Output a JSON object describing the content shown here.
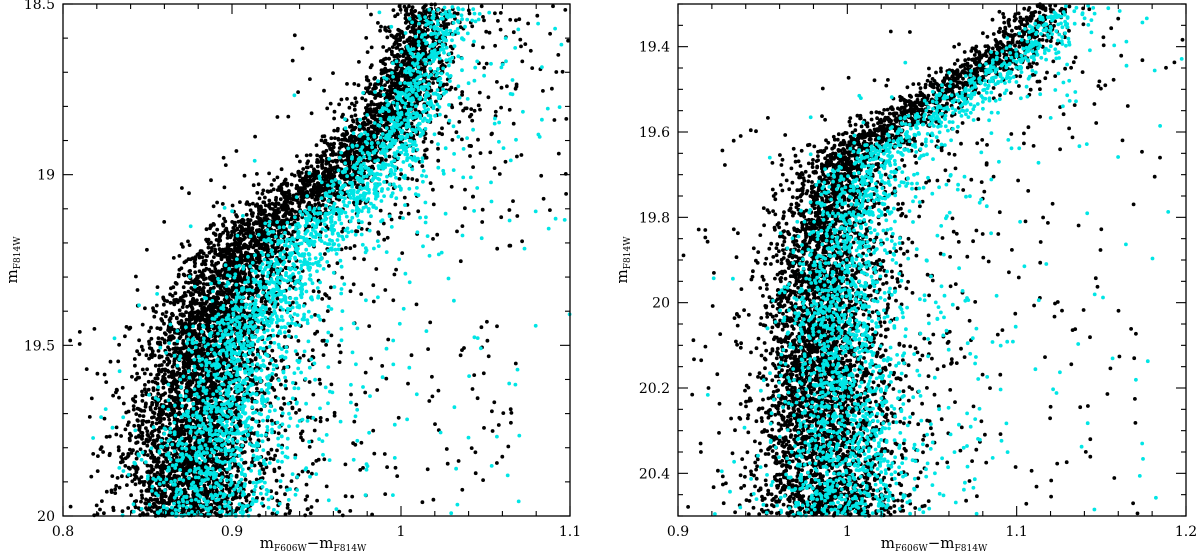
{
  "chart_data": [
    {
      "type": "scatter",
      "xlabel": "m_F606W − m_F814W",
      "xlabel_main": "m",
      "xlabel_sub1": "F606W",
      "xlabel_minus": "−m",
      "xlabel_sub2": "F814W",
      "ylabel_main": "m",
      "ylabel_sub": "F814W",
      "xlim": [
        0.8,
        1.1
      ],
      "ylim": [
        18.5,
        20.0
      ],
      "y_inverted": true,
      "x_major_ticks": [
        0.8,
        0.9,
        1.0,
        1.1
      ],
      "x_tick_labels": [
        "0.8",
        "0.9",
        "1",
        "1.1"
      ],
      "x_minor_step": 0.02,
      "y_major_ticks": [
        18.5,
        19.0,
        19.5,
        20.0
      ],
      "y_tick_labels": [
        "18.5",
        "19",
        "19.5",
        "20"
      ],
      "y_minor_step": 0.1,
      "grid": false,
      "series_colors": [
        "#000000",
        "#00e5e5"
      ],
      "series": [
        {
          "color": "#000000",
          "density_track": [
            [
              20.0,
              0.872
            ],
            [
              19.75,
              0.876
            ],
            [
              19.5,
              0.884
            ],
            [
              19.3,
              0.898
            ],
            [
              19.15,
              0.918
            ],
            [
              19.05,
              0.945
            ],
            [
              18.95,
              0.972
            ],
            [
              18.85,
              0.99
            ],
            [
              18.75,
              1.0
            ],
            [
              18.62,
              1.008
            ],
            [
              18.5,
              1.016
            ]
          ],
          "count": 6500
        },
        {
          "color": "#00e5e5",
          "density_track": [
            [
              20.0,
              0.885
            ],
            [
              19.75,
              0.892
            ],
            [
              19.5,
              0.904
            ],
            [
              19.3,
              0.925
            ],
            [
              19.15,
              0.95
            ],
            [
              19.05,
              0.975
            ],
            [
              18.95,
              0.99
            ],
            [
              18.85,
              1.0
            ],
            [
              18.75,
              1.01
            ],
            [
              18.62,
              1.018
            ],
            [
              18.5,
              1.026
            ]
          ],
          "count": 2600
        }
      ]
    },
    {
      "type": "scatter",
      "xlabel": "m_F606W − m_F814W",
      "xlabel_main": "m",
      "xlabel_sub1": "F606W",
      "xlabel_minus": "−m",
      "xlabel_sub2": "F814W",
      "ylabel_main": "m",
      "ylabel_sub": "F814W",
      "xlim": [
        0.9,
        1.2
      ],
      "ylim": [
        19.3,
        20.5
      ],
      "y_inverted": true,
      "x_major_ticks": [
        0.9,
        1.0,
        1.1,
        1.2
      ],
      "x_tick_labels": [
        "0.9",
        "1",
        "1.1",
        "1.2"
      ],
      "x_minor_step": 0.02,
      "y_major_ticks": [
        19.4,
        19.6,
        19.8,
        20.0,
        20.2,
        20.4
      ],
      "y_tick_labels": [
        "19.4",
        "19.6",
        "19.8",
        "20",
        "20.2",
        "20.4"
      ],
      "y_minor_step": 0.05,
      "grid": false,
      "series_colors": [
        "#000000",
        "#00e5e5"
      ],
      "series": [
        {
          "color": "#000000",
          "density_track": [
            [
              20.5,
              0.985
            ],
            [
              20.2,
              0.983
            ],
            [
              20.0,
              0.982
            ],
            [
              19.85,
              0.984
            ],
            [
              19.75,
              0.99
            ],
            [
              19.65,
              1.0
            ],
            [
              19.58,
              1.025
            ],
            [
              19.52,
              1.05
            ],
            [
              19.45,
              1.08
            ],
            [
              19.38,
              1.1
            ],
            [
              19.3,
              1.12
            ]
          ],
          "count": 5200
        },
        {
          "color": "#00e5e5",
          "density_track": [
            [
              20.5,
              0.998
            ],
            [
              20.2,
              0.996
            ],
            [
              20.0,
              0.995
            ],
            [
              19.85,
              0.998
            ],
            [
              19.75,
              1.005
            ],
            [
              19.65,
              1.02
            ],
            [
              19.58,
              1.045
            ],
            [
              19.52,
              1.07
            ],
            [
              19.45,
              1.095
            ],
            [
              19.38,
              1.115
            ],
            [
              19.3,
              1.135
            ]
          ],
          "count": 2300
        }
      ]
    }
  ]
}
